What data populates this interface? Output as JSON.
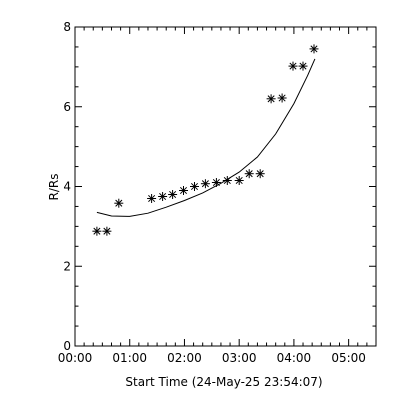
{
  "chart_data": {
    "type": "scatter",
    "xlabel": "Start Time (24-May-25 23:54:07)",
    "ylabel": "R/Rs",
    "xlim": [
      0,
      330
    ],
    "ylim": [
      0,
      8
    ],
    "x_unit": "minutes",
    "x_ticks": [
      {
        "value": 0,
        "label": "00:00"
      },
      {
        "value": 60,
        "label": "01:00"
      },
      {
        "value": 120,
        "label": "02:00"
      },
      {
        "value": 180,
        "label": "03:00"
      },
      {
        "value": 240,
        "label": "04:00"
      },
      {
        "value": 300,
        "label": "05:00"
      }
    ],
    "y_ticks": [
      {
        "value": 0,
        "label": "0"
      },
      {
        "value": 2,
        "label": "2"
      },
      {
        "value": 4,
        "label": "4"
      },
      {
        "value": 6,
        "label": "6"
      },
      {
        "value": 8,
        "label": "8"
      }
    ],
    "series": [
      {
        "marker": "asterisk",
        "points": [
          [
            24,
            2.88
          ],
          [
            35,
            2.88
          ],
          [
            48,
            3.58
          ],
          [
            84,
            3.7
          ],
          [
            96,
            3.75
          ],
          [
            107,
            3.8
          ],
          [
            119,
            3.9
          ],
          [
            131,
            4.0
          ],
          [
            143,
            4.07
          ],
          [
            155,
            4.1
          ],
          [
            167,
            4.15
          ],
          [
            180,
            4.15
          ],
          [
            191,
            4.32
          ],
          [
            203,
            4.32
          ],
          [
            215,
            6.2
          ],
          [
            227,
            6.22
          ],
          [
            239,
            7.02
          ],
          [
            250,
            7.02
          ],
          [
            262,
            7.45
          ]
        ]
      },
      {
        "style": "line",
        "points": [
          [
            24,
            3.35
          ],
          [
            40,
            3.26
          ],
          [
            60,
            3.25
          ],
          [
            80,
            3.33
          ],
          [
            100,
            3.48
          ],
          [
            120,
            3.65
          ],
          [
            140,
            3.84
          ],
          [
            160,
            4.08
          ],
          [
            180,
            4.36
          ],
          [
            200,
            4.74
          ],
          [
            220,
            5.32
          ],
          [
            240,
            6.08
          ],
          [
            255,
            6.78
          ],
          [
            263,
            7.2
          ]
        ]
      }
    ],
    "grid": false,
    "legend": "none"
  }
}
